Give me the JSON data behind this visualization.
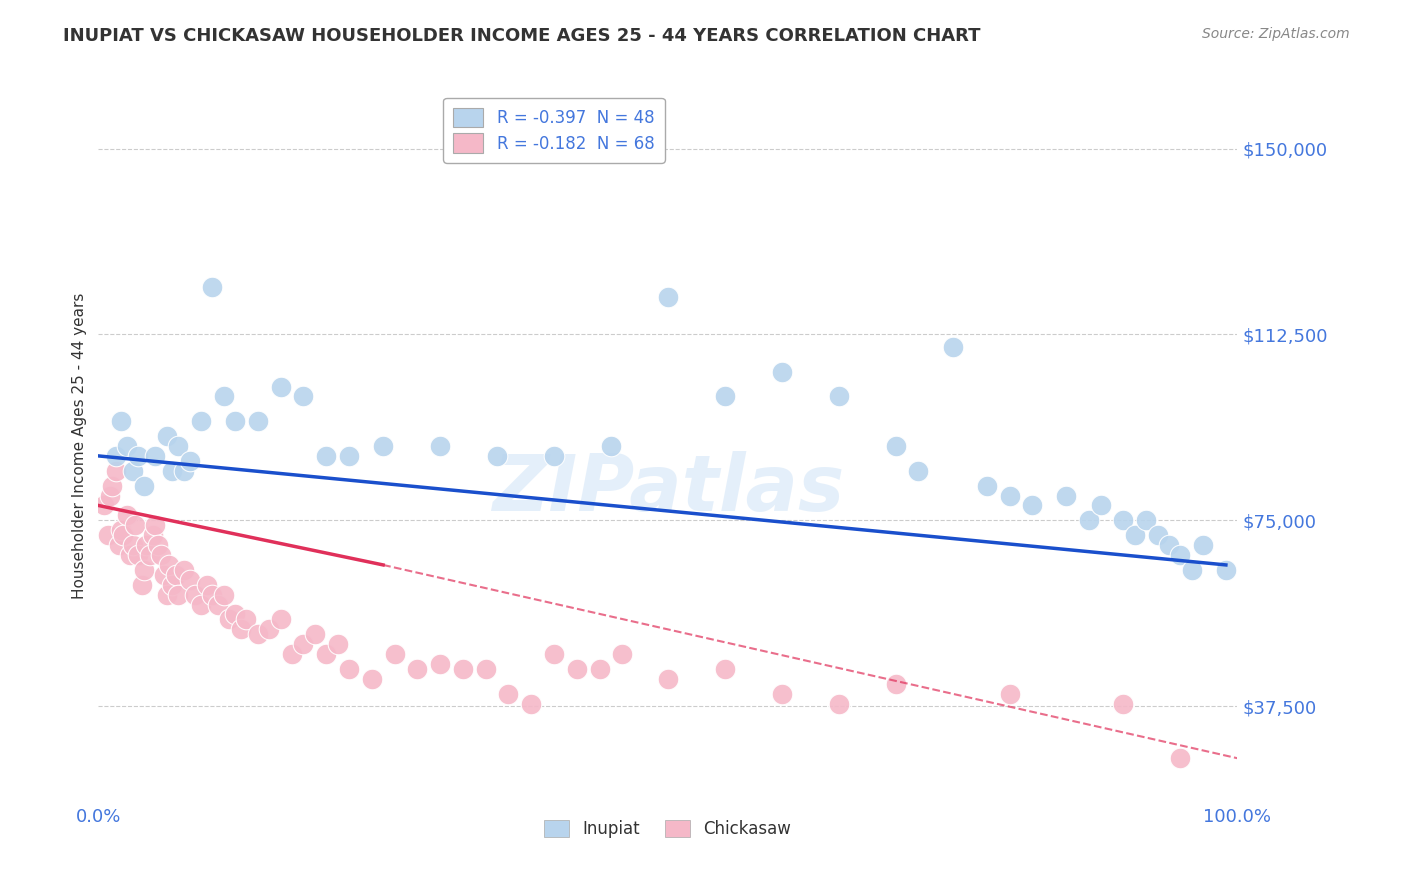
{
  "title": "INUPIAT VS CHICKASAW HOUSEHOLDER INCOME AGES 25 - 44 YEARS CORRELATION CHART",
  "source_text": "Source: ZipAtlas.com",
  "ylabel": "Householder Income Ages 25 - 44 years",
  "xlim": [
    0.0,
    100.0
  ],
  "ylim": [
    18000,
    162000
  ],
  "yticks": [
    37500,
    75000,
    112500,
    150000
  ],
  "ytick_labels": [
    "$37,500",
    "$75,000",
    "$112,500",
    "$150,000"
  ],
  "xticks": [
    0.0,
    100.0
  ],
  "xtick_labels": [
    "0.0%",
    "100.0%"
  ],
  "watermark": "ZIPatlas",
  "legend_items": [
    {
      "label": "R = -0.397  N = 48",
      "color": "#b8d4ed"
    },
    {
      "label": "R = -0.182  N = 68",
      "color": "#f5b8c8"
    }
  ],
  "inupiat_color": "#b8d4ed",
  "chickasaw_color": "#f5b8c8",
  "inupiat_line_color": "#1a4fcc",
  "chickasaw_line_color": "#e0305a",
  "grid_color": "#cccccc",
  "bg_color": "#ffffff",
  "title_color": "#333333",
  "axis_label_color": "#4477dd",
  "inupiat_x": [
    1.5,
    2.0,
    2.5,
    3.0,
    3.5,
    4.0,
    5.0,
    6.0,
    6.5,
    7.0,
    7.5,
    8.0,
    9.0,
    10.0,
    11.0,
    12.0,
    14.0,
    16.0,
    18.0,
    20.0,
    22.0,
    25.0,
    30.0,
    35.0,
    40.0,
    45.0,
    50.0,
    55.0,
    60.0,
    65.0,
    70.0,
    72.0,
    75.0,
    78.0,
    80.0,
    82.0,
    85.0,
    87.0,
    88.0,
    90.0,
    91.0,
    92.0,
    93.0,
    94.0,
    95.0,
    96.0,
    97.0,
    99.0
  ],
  "inupiat_y": [
    88000,
    95000,
    90000,
    85000,
    88000,
    82000,
    88000,
    92000,
    85000,
    90000,
    85000,
    87000,
    95000,
    122000,
    100000,
    95000,
    95000,
    102000,
    100000,
    88000,
    88000,
    90000,
    90000,
    88000,
    88000,
    90000,
    120000,
    100000,
    105000,
    100000,
    90000,
    85000,
    110000,
    82000,
    80000,
    78000,
    80000,
    75000,
    78000,
    75000,
    72000,
    75000,
    72000,
    70000,
    68000,
    65000,
    70000,
    65000
  ],
  "chickasaw_x": [
    0.5,
    0.8,
    1.0,
    1.2,
    1.5,
    1.8,
    2.0,
    2.2,
    2.5,
    2.8,
    3.0,
    3.2,
    3.5,
    3.8,
    4.0,
    4.2,
    4.5,
    4.8,
    5.0,
    5.2,
    5.5,
    5.8,
    6.0,
    6.2,
    6.5,
    6.8,
    7.0,
    7.5,
    8.0,
    8.5,
    9.0,
    9.5,
    10.0,
    10.5,
    11.0,
    11.5,
    12.0,
    12.5,
    13.0,
    14.0,
    15.0,
    16.0,
    17.0,
    18.0,
    19.0,
    20.0,
    21.0,
    22.0,
    24.0,
    26.0,
    28.0,
    30.0,
    32.0,
    34.0,
    36.0,
    38.0,
    40.0,
    42.0,
    44.0,
    46.0,
    50.0,
    55.0,
    60.0,
    65.0,
    70.0,
    80.0,
    90.0,
    95.0
  ],
  "chickasaw_y": [
    78000,
    72000,
    80000,
    82000,
    85000,
    70000,
    73000,
    72000,
    76000,
    68000,
    70000,
    74000,
    68000,
    62000,
    65000,
    70000,
    68000,
    72000,
    74000,
    70000,
    68000,
    64000,
    60000,
    66000,
    62000,
    64000,
    60000,
    65000,
    63000,
    60000,
    58000,
    62000,
    60000,
    58000,
    60000,
    55000,
    56000,
    53000,
    55000,
    52000,
    53000,
    55000,
    48000,
    50000,
    52000,
    48000,
    50000,
    45000,
    43000,
    48000,
    45000,
    46000,
    45000,
    45000,
    40000,
    38000,
    48000,
    45000,
    45000,
    48000,
    43000,
    45000,
    40000,
    38000,
    42000,
    40000,
    38000,
    27000
  ],
  "inupiat_line_x0": 0,
  "inupiat_line_x1": 99,
  "inupiat_line_y0": 88000,
  "inupiat_line_y1": 66000,
  "chickasaw_line_solid_x0": 0,
  "chickasaw_line_solid_x1": 25,
  "chickasaw_line_solid_y0": 78000,
  "chickasaw_line_solid_y1": 66000,
  "chickasaw_line_dash_x0": 25,
  "chickasaw_line_dash_x1": 100,
  "chickasaw_line_dash_y0": 66000,
  "chickasaw_line_dash_y1": 27000
}
